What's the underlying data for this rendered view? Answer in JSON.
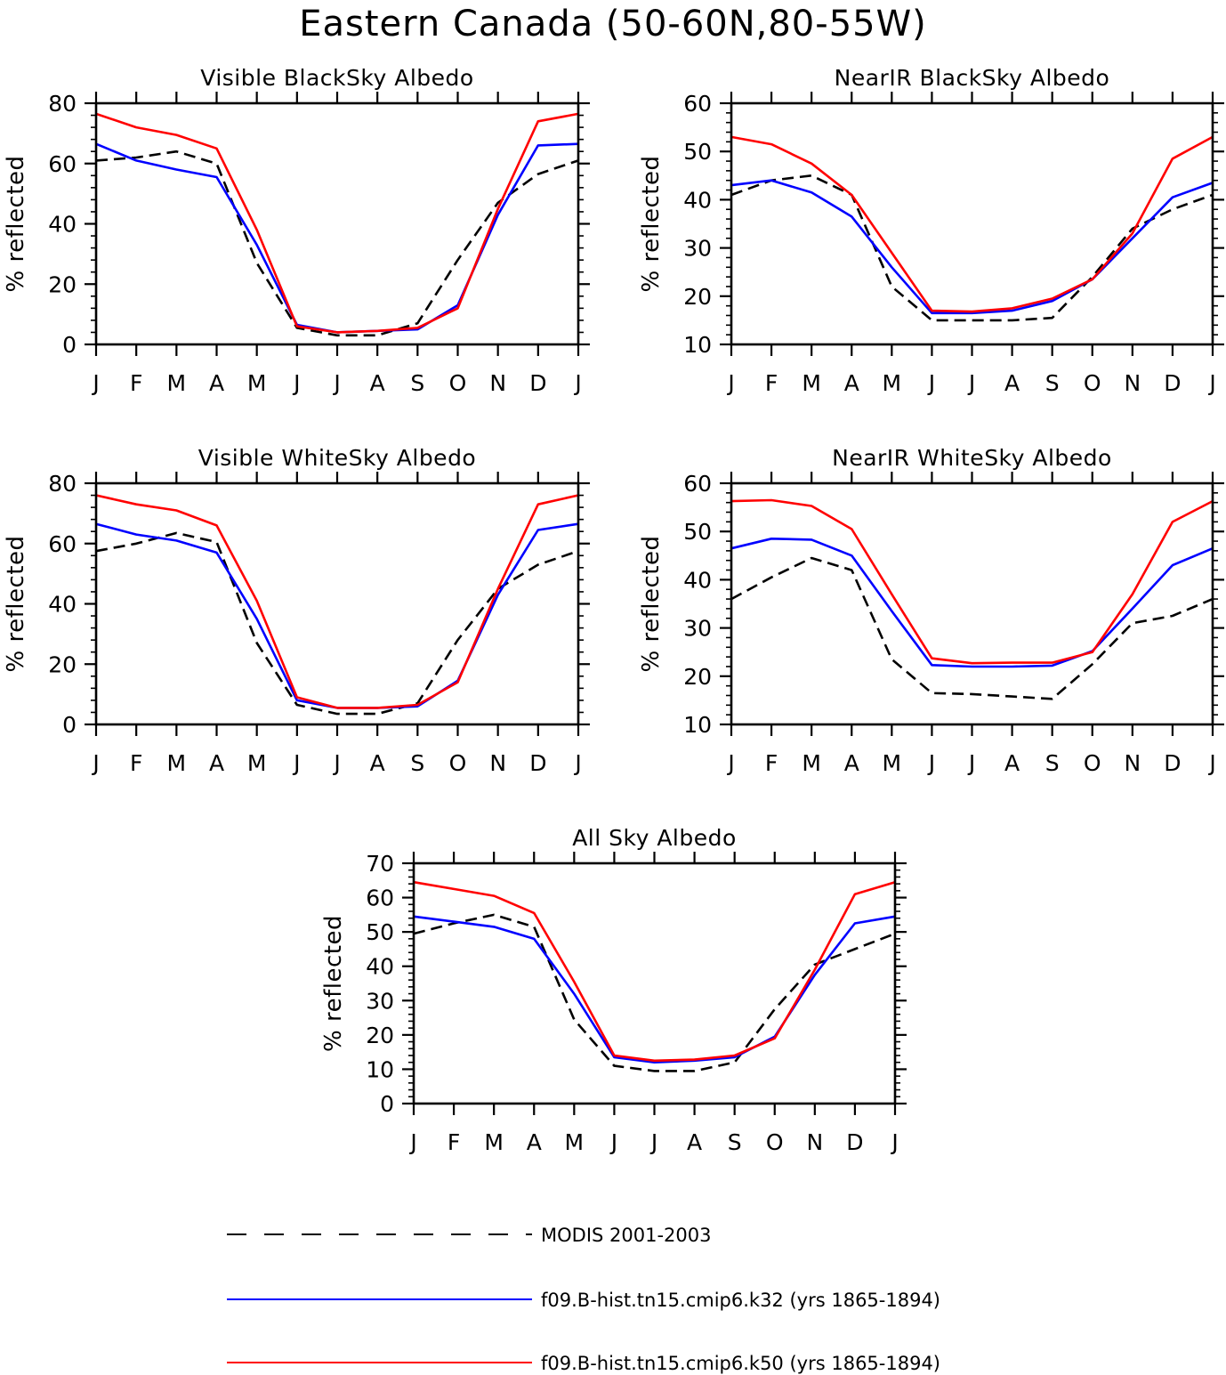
{
  "title": "Eastern Canada (50-60N,80-55W)",
  "legend": [
    {
      "label": "MODIS 2001-2003",
      "color": "#000000",
      "dashed": true
    },
    {
      "label": "f09.B-hist.tn15.cmip6.k32 (yrs 1865-1894)",
      "color": "#0000ff",
      "dashed": false
    },
    {
      "label": "f09.B-hist.tn15.cmip6.k50 (yrs 1865-1894)",
      "color": "#ff0000",
      "dashed": false
    }
  ],
  "chart_data": [
    {
      "type": "line",
      "title": "Visible BlackSky Albedo",
      "ylabel": "% reflected",
      "xlabel": "",
      "categories": [
        "J",
        "F",
        "M",
        "A",
        "M",
        "J",
        "J",
        "A",
        "S",
        "O",
        "N",
        "D",
        "J"
      ],
      "ylim": [
        0,
        80
      ],
      "yticks": [
        0,
        20,
        40,
        60,
        80
      ],
      "series": [
        {
          "name": "MODIS 2001-2003",
          "color": "#000000",
          "dashed": true,
          "values": [
            61,
            62,
            64,
            60,
            27,
            5.5,
            3,
            3,
            7,
            28,
            47,
            56.5,
            61
          ]
        },
        {
          "name": "f09.B-hist.tn15.cmip6.k32 (yrs 1865-1894)",
          "color": "#0000ff",
          "dashed": false,
          "values": [
            66.5,
            61,
            58,
            55.5,
            33,
            6.5,
            4,
            4.5,
            5,
            13,
            43,
            66,
            66.5
          ]
        },
        {
          "name": "f09.B-hist.tn15.cmip6.k50 (yrs 1865-1894)",
          "color": "#ff0000",
          "dashed": false,
          "values": [
            76.5,
            72,
            69.5,
            65,
            38,
            6,
            4,
            4.5,
            5.5,
            12,
            45,
            74,
            76.5
          ]
        }
      ]
    },
    {
      "type": "line",
      "title": "NearIR BlackSky Albedo",
      "ylabel": "% reflected",
      "xlabel": "",
      "categories": [
        "J",
        "F",
        "M",
        "A",
        "M",
        "J",
        "J",
        "A",
        "S",
        "O",
        "N",
        "D",
        "J"
      ],
      "ylim": [
        10,
        60
      ],
      "yticks": [
        10,
        20,
        30,
        40,
        50,
        60
      ],
      "series": [
        {
          "name": "MODIS 2001-2003",
          "color": "#000000",
          "dashed": true,
          "values": [
            41,
            44,
            45,
            41,
            22,
            15,
            15,
            15,
            15.5,
            24,
            34,
            38,
            41
          ]
        },
        {
          "name": "f09.B-hist.tn15.cmip6.k32 (yrs 1865-1894)",
          "color": "#0000ff",
          "dashed": false,
          "values": [
            43,
            44,
            41.5,
            36.5,
            26,
            16.5,
            16.5,
            17,
            19,
            23.5,
            32,
            40.5,
            43.5
          ]
        },
        {
          "name": "f09.B-hist.tn15.cmip6.k50 (yrs 1865-1894)",
          "color": "#ff0000",
          "dashed": false,
          "values": [
            53,
            51.5,
            47.5,
            41,
            29,
            17,
            16.8,
            17.5,
            19.5,
            23.5,
            33,
            48.5,
            53
          ]
        }
      ]
    },
    {
      "type": "line",
      "title": "Visible WhiteSky Albedo",
      "ylabel": "% reflected",
      "xlabel": "",
      "categories": [
        "J",
        "F",
        "M",
        "A",
        "M",
        "J",
        "J",
        "A",
        "S",
        "O",
        "N",
        "D",
        "J"
      ],
      "ylim": [
        0,
        80
      ],
      "yticks": [
        0,
        20,
        40,
        60,
        80
      ],
      "series": [
        {
          "name": "MODIS 2001-2003",
          "color": "#000000",
          "dashed": true,
          "values": [
            57.5,
            60,
            63.5,
            60.5,
            27,
            6.5,
            3.5,
            3.5,
            7,
            28,
            45,
            53,
            57.5
          ]
        },
        {
          "name": "f09.B-hist.tn15.cmip6.k32 (yrs 1865-1894)",
          "color": "#0000ff",
          "dashed": false,
          "values": [
            66.5,
            63,
            61,
            57,
            35,
            8,
            5.5,
            5.5,
            6,
            14.5,
            43,
            64.5,
            66.5
          ]
        },
        {
          "name": "f09.B-hist.tn15.cmip6.k50 (yrs 1865-1894)",
          "color": "#ff0000",
          "dashed": false,
          "values": [
            76,
            73,
            71,
            66,
            41,
            9,
            5.5,
            5.5,
            6.5,
            14,
            45,
            73,
            76
          ]
        }
      ]
    },
    {
      "type": "line",
      "title": "NearIR WhiteSky Albedo",
      "ylabel": "% reflected",
      "xlabel": "",
      "categories": [
        "J",
        "F",
        "M",
        "A",
        "M",
        "J",
        "J",
        "A",
        "S",
        "O",
        "N",
        "D",
        "J"
      ],
      "ylim": [
        10,
        60
      ],
      "yticks": [
        10,
        20,
        30,
        40,
        50,
        60
      ],
      "series": [
        {
          "name": "MODIS 2001-2003",
          "color": "#000000",
          "dashed": true,
          "values": [
            36,
            40.5,
            44.5,
            42,
            23.5,
            16.5,
            16.3,
            15.8,
            15.3,
            22.5,
            31,
            32.5,
            36
          ]
        },
        {
          "name": "f09.B-hist.tn15.cmip6.k32 (yrs 1865-1894)",
          "color": "#0000ff",
          "dashed": false,
          "values": [
            46.5,
            48.5,
            48.3,
            45,
            33.5,
            22.3,
            22,
            22,
            22.2,
            25.2,
            34,
            43,
            46.5
          ]
        },
        {
          "name": "f09.B-hist.tn15.cmip6.k50 (yrs 1865-1894)",
          "color": "#ff0000",
          "dashed": false,
          "values": [
            56.3,
            56.5,
            55.3,
            50.5,
            37,
            23.7,
            22.7,
            22.8,
            22.8,
            25,
            37,
            52,
            56.3
          ]
        }
      ]
    },
    {
      "type": "line",
      "title": "All Sky Albedo",
      "ylabel": "% reflected",
      "xlabel": "",
      "categories": [
        "J",
        "F",
        "M",
        "A",
        "M",
        "J",
        "J",
        "A",
        "S",
        "O",
        "N",
        "D",
        "J"
      ],
      "ylim": [
        0,
        70
      ],
      "yticks": [
        0,
        10,
        20,
        30,
        40,
        50,
        60,
        70
      ],
      "series": [
        {
          "name": "MODIS 2001-2003",
          "color": "#000000",
          "dashed": true,
          "values": [
            49.5,
            52.5,
            55,
            51.5,
            24.5,
            11,
            9.5,
            9.5,
            12,
            27.5,
            40.5,
            45,
            49.5
          ]
        },
        {
          "name": "f09.B-hist.tn15.cmip6.k32 (yrs 1865-1894)",
          "color": "#0000ff",
          "dashed": false,
          "values": [
            54.5,
            53,
            51.5,
            48,
            32,
            13.5,
            12,
            12.5,
            13.5,
            19.5,
            37.5,
            52.5,
            54.5
          ]
        },
        {
          "name": "f09.B-hist.tn15.cmip6.k50 (yrs 1865-1894)",
          "color": "#ff0000",
          "dashed": false,
          "values": [
            64.5,
            62.5,
            60.5,
            55.5,
            35.5,
            14,
            12.5,
            12.8,
            14,
            19,
            39,
            61,
            64.5
          ]
        }
      ]
    }
  ]
}
